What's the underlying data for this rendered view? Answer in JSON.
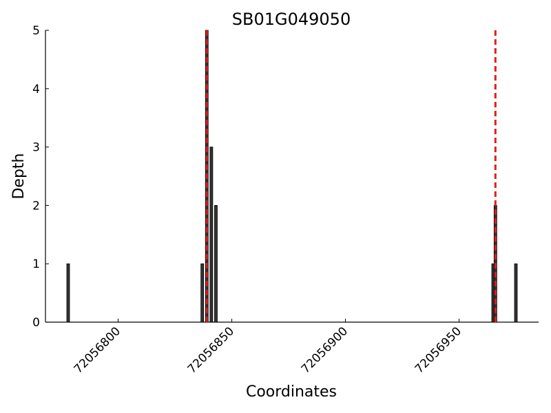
{
  "chart_data": {
    "type": "bar",
    "title": "SB01G049050",
    "x_label": "Coordinates",
    "y_label": "Depth",
    "x": [
      72056778,
      72056837,
      72056839,
      72056841,
      72056843,
      72056965,
      72056966,
      72056975
    ],
    "values": [
      1,
      1,
      5,
      3,
      2,
      1,
      2,
      1
    ],
    "color": "#333333",
    "vlines": [
      72056839,
      72056966
    ],
    "vline_color": "#e31a1c",
    "xlim": [
      72056768,
      72056985
    ],
    "ylim": [
      0,
      5
    ],
    "xticks": [
      72056800,
      72056850,
      72056900,
      72056950
    ],
    "yticks": [
      0,
      1,
      2,
      3,
      4,
      5
    ],
    "grid": false
  }
}
